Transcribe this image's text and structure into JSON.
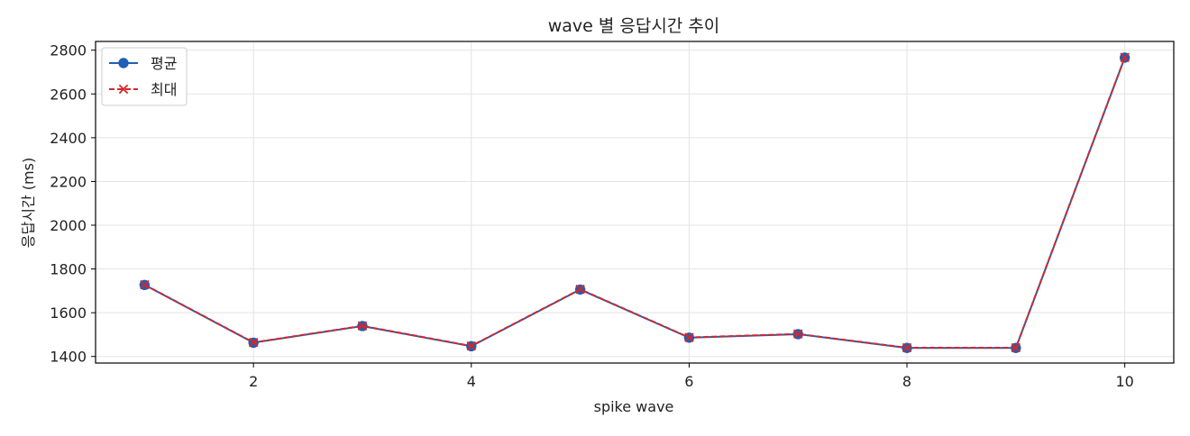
{
  "chart_data": {
    "type": "line",
    "title": "wave 별 응답시간 추이",
    "xlabel": "spike wave",
    "ylabel": "응답시간 (ms)",
    "x": [
      1,
      2,
      3,
      4,
      5,
      6,
      7,
      8,
      9,
      10
    ],
    "xlim": [
      0.55,
      10.45
    ],
    "ylim": [
      1370,
      2840
    ],
    "xticks": [
      2,
      4,
      6,
      8,
      10
    ],
    "yticks": [
      1400,
      1600,
      1800,
      2000,
      2200,
      2400,
      2600,
      2800
    ],
    "grid": true,
    "legend_position": "top-left",
    "series": [
      {
        "name": "평균",
        "values": [
          1727,
          1463,
          1539,
          1447,
          1706,
          1486,
          1502,
          1439,
          1439,
          2766
        ],
        "color": "#1f5fb4",
        "marker": "circle",
        "line_style": "solid"
      },
      {
        "name": "최대",
        "values": [
          1728,
          1464,
          1540,
          1448,
          1707,
          1487,
          1503,
          1440,
          1440,
          2767
        ],
        "color": "#d62728",
        "marker": "x",
        "line_style": "dashed"
      }
    ]
  }
}
